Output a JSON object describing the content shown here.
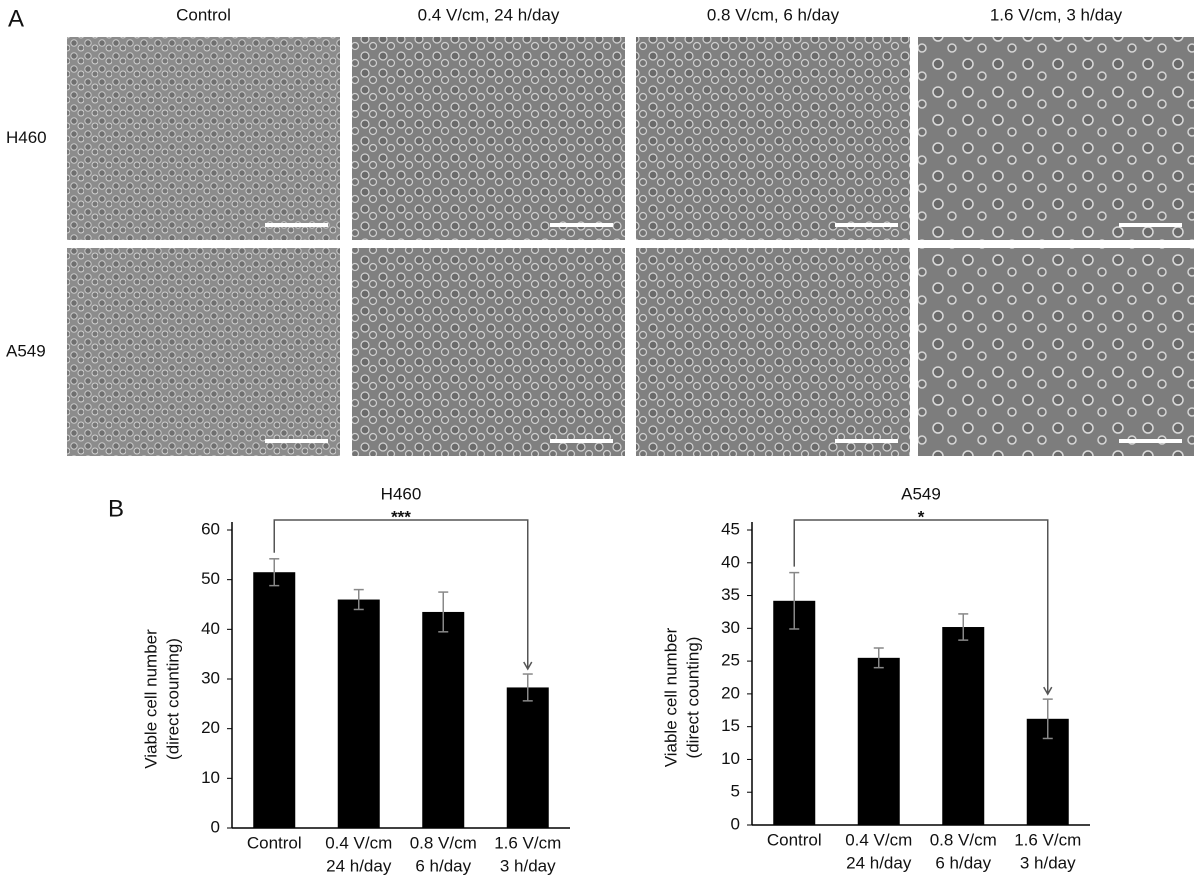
{
  "panel_a": {
    "label": "A",
    "columns": [
      "Control",
      "0.4 V/cm, 24 h/day",
      "0.8 V/cm, 6 h/day",
      "1.6 V/cm, 3 h/day"
    ],
    "rows": [
      "H460",
      "A549"
    ]
  },
  "panel_b_label": "B",
  "chart_data": [
    {
      "type": "bar",
      "title": "H460",
      "y_label": [
        "Viable cell number",
        "(direct counting)"
      ],
      "categories": [
        [
          "Control"
        ],
        [
          "0.4 V/cm",
          "24 h/day"
        ],
        [
          "0.8 V/cm",
          "6 h/day"
        ],
        [
          "1.6 V/cm",
          "3 h/day"
        ]
      ],
      "values": [
        51.5,
        46,
        43.5,
        28.3
      ],
      "errors": [
        2.7,
        2.0,
        4.0,
        2.7
      ],
      "color": "#000000",
      "ylim": [
        0,
        60
      ],
      "yticks": [
        0,
        10,
        20,
        30,
        40,
        50,
        60
      ],
      "significance": {
        "label": "***",
        "between": [
          0,
          3
        ]
      }
    },
    {
      "type": "bar",
      "title": "A549",
      "y_label": [
        "Viable cell number",
        "(direct counting)"
      ],
      "categories": [
        [
          "Control"
        ],
        [
          "0.4 V/cm",
          "24 h/day"
        ],
        [
          "0.8 V/cm",
          "6 h/day"
        ],
        [
          "1.6 V/cm",
          "3 h/day"
        ]
      ],
      "values": [
        34.2,
        25.5,
        30.2,
        16.2
      ],
      "errors": [
        4.3,
        1.5,
        2.0,
        3.0
      ],
      "color": "#000000",
      "ylim": [
        0,
        45
      ],
      "yticks": [
        0,
        5,
        10,
        15,
        20,
        25,
        30,
        35,
        40,
        45
      ],
      "significance": {
        "label": "*",
        "between": [
          0,
          3
        ]
      }
    }
  ]
}
